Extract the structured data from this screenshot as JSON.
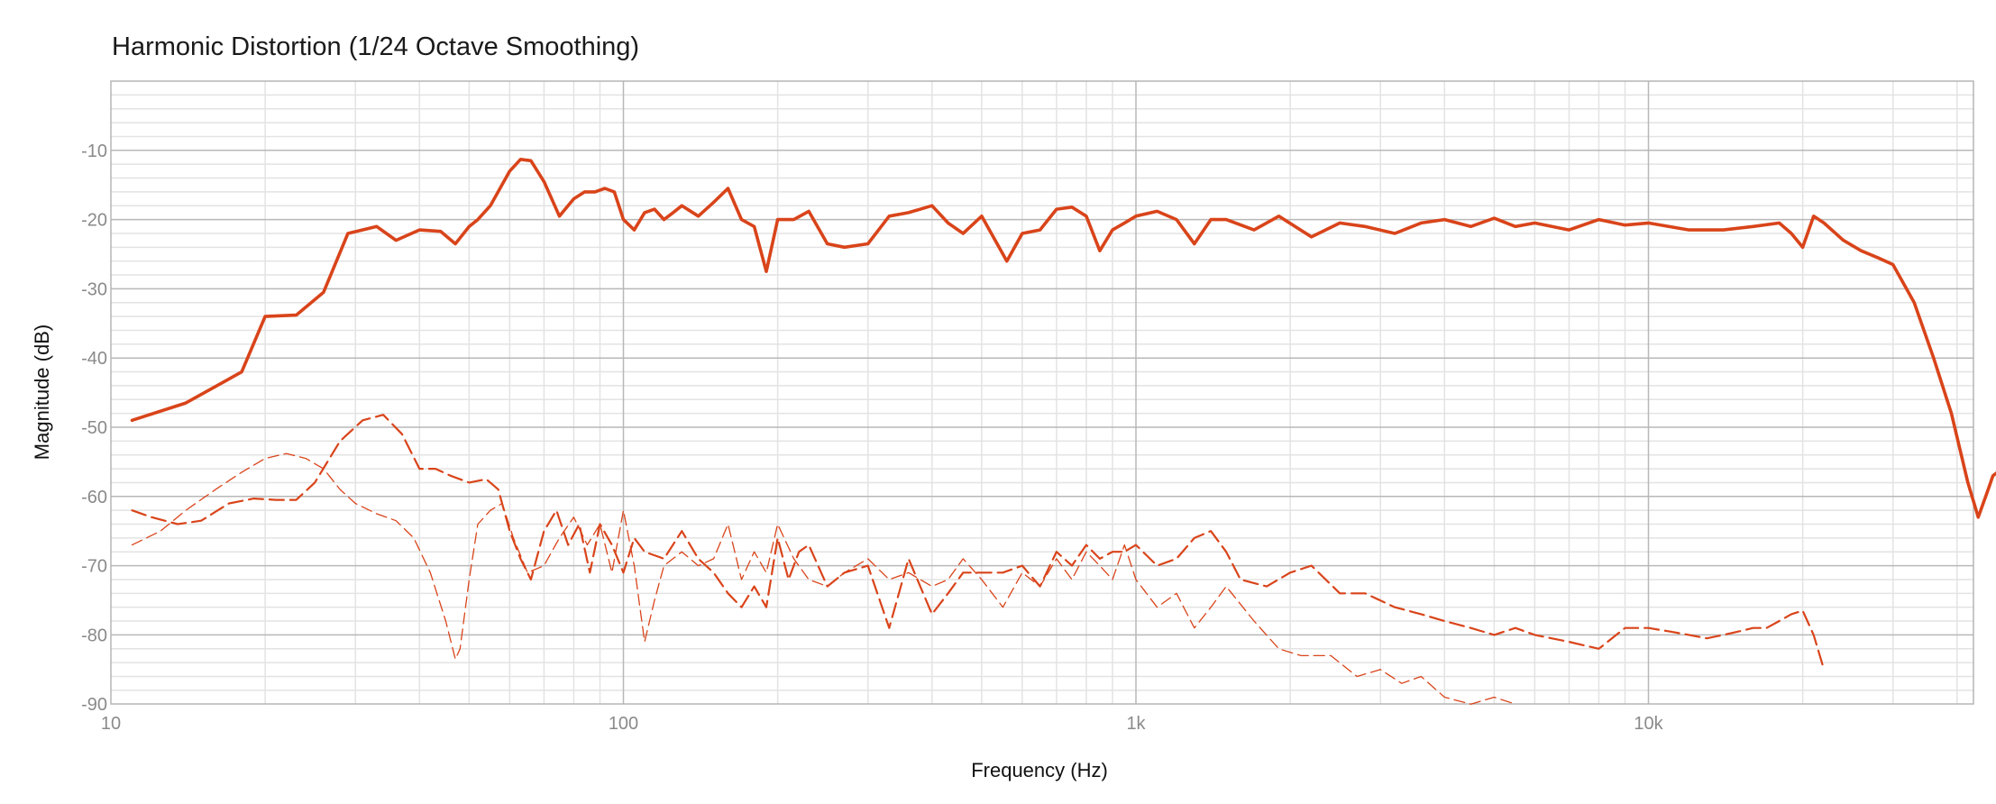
{
  "chart_data": {
    "type": "line",
    "title": "Harmonic Distortion",
    "subtitle": "(1/24 Octave Smoothing)",
    "xlabel": "Frequency (Hz)",
    "ylabel": "Magnitude (dB)",
    "x_scale": "log",
    "xlim": [
      10,
      50000
    ],
    "ylim": [
      -90,
      0
    ],
    "x_ticks": [
      10,
      100,
      1000,
      10000
    ],
    "x_tick_labels": [
      "10",
      "100",
      "1k",
      "10k"
    ],
    "y_ticks": [
      -10,
      -20,
      -30,
      -40,
      -50,
      -60,
      -70,
      -80,
      -90
    ],
    "y_tick_labels": [
      "-10",
      "-20",
      "-30",
      "-40",
      "-50",
      "-60",
      "-70",
      "-80",
      "-90"
    ],
    "grid": true,
    "colors": {
      "accent": "#d9441a",
      "grid_major": "#b8b8b8",
      "grid_minor": "#e3e3e3"
    },
    "series": [
      {
        "style": "solid",
        "x": [
          11,
          14,
          18,
          20,
          23,
          26,
          29,
          33,
          36,
          40,
          44,
          47,
          50,
          52,
          55,
          60,
          63,
          66,
          70,
          75,
          80,
          84,
          88,
          92,
          96,
          100,
          105,
          110,
          115,
          120,
          125,
          130,
          140,
          150,
          160,
          170,
          180,
          190,
          200,
          215,
          230,
          250,
          270,
          300,
          330,
          360,
          400,
          430,
          460,
          500,
          560,
          600,
          650,
          700,
          750,
          800,
          850,
          900,
          950,
          1000,
          1100,
          1200,
          1300,
          1400,
          1500,
          1700,
          1900,
          2200,
          2500,
          2800,
          3200,
          3600,
          4000,
          4500,
          5000,
          5500,
          6000,
          7000,
          8000,
          9000,
          10000,
          12000,
          14000,
          16000,
          18000,
          19000,
          20000,
          21000,
          22000,
          24000,
          26000,
          28000,
          30000,
          33000,
          36000,
          39000,
          42000,
          44000,
          46000,
          47000,
          48000,
          49000,
          50000
        ],
        "values": [
          -49,
          -46.5,
          -42,
          -34,
          -33.8,
          -30.5,
          -22,
          -21,
          -23,
          -21.5,
          -21.7,
          -23.5,
          -21,
          -20,
          -18,
          -13,
          -11.3,
          -11.5,
          -14.5,
          -19.5,
          -17,
          -16,
          -16,
          -15.5,
          -16,
          -20,
          -21.5,
          -19,
          -18.5,
          -20,
          -19,
          -18,
          -19.5,
          -17.5,
          -15.5,
          -20,
          -21,
          -27.5,
          -20,
          -20,
          -18.8,
          -23.5,
          -24,
          -23.5,
          -19.5,
          -19,
          -18,
          -20.5,
          -22,
          -19.5,
          -26,
          -22,
          -21.5,
          -18.5,
          -18.2,
          -19.5,
          -24.5,
          -21.5,
          -20.5,
          -19.5,
          -18.8,
          -20,
          -23.5,
          -20,
          -20,
          -21.5,
          -19.5,
          -22.5,
          -20.5,
          -21,
          -22,
          -20.5,
          -20,
          -21,
          -19.8,
          -21,
          -20.5,
          -21.5,
          -20,
          -20.8,
          -20.5,
          -21.5,
          -21.5,
          -21,
          -20.5,
          -22,
          -24,
          -19.5,
          -20.5,
          -23,
          -24.5,
          -25.5,
          -26.5,
          -32,
          -40,
          -48,
          -58,
          -63,
          -59,
          -57,
          -56.5,
          -58,
          -59.5
        ]
      },
      {
        "style": "dashed",
        "x": [
          11,
          12,
          13.5,
          15,
          17,
          19,
          21,
          23,
          25,
          28,
          31,
          34,
          37,
          40,
          43,
          46,
          50,
          54,
          57,
          60,
          63,
          66,
          70,
          74,
          78,
          82,
          86,
          90,
          95,
          100,
          105,
          110,
          120,
          130,
          140,
          150,
          160,
          170,
          180,
          190,
          200,
          210,
          220,
          230,
          250,
          270,
          300,
          330,
          360,
          400,
          430,
          460,
          500,
          550,
          600,
          650,
          700,
          750,
          800,
          850,
          900,
          950,
          1000,
          1100,
          1200,
          1300,
          1400,
          1500,
          1600,
          1800,
          2000,
          2200,
          2500,
          2800,
          3200,
          3600,
          4000,
          4500,
          5000,
          5500,
          6000,
          7000,
          8000,
          9000,
          10000,
          11000,
          12000,
          13000,
          14000,
          15000,
          16000,
          17000,
          18000,
          19000,
          20000,
          21000,
          22000
        ],
        "values": [
          -62,
          -63,
          -64,
          -63.5,
          -61,
          -60.3,
          -60.5,
          -60.5,
          -58,
          -52,
          -49,
          -48.2,
          -51,
          -56,
          -56,
          -57,
          -58,
          -57.5,
          -59,
          -65,
          -69,
          -72,
          -65,
          -62,
          -67,
          -64,
          -71,
          -64,
          -67,
          -71,
          -66,
          -68,
          -69,
          -65,
          -69,
          -71,
          -74,
          -76,
          -73,
          -76,
          -66,
          -72,
          -68,
          -67,
          -73,
          -71,
          -70,
          -79,
          -69,
          -77,
          -74,
          -71,
          -71,
          -71,
          -70,
          -73,
          -68,
          -70,
          -67,
          -69,
          -68,
          -68,
          -67,
          -70,
          -69,
          -66,
          -65,
          -68,
          -72,
          -73,
          -71,
          -70,
          -74,
          -74,
          -76,
          -77,
          -78,
          -79,
          -80,
          -79,
          -80,
          -81,
          -82,
          -79,
          -79,
          -79.5,
          -80,
          -80.5,
          -80,
          -79.5,
          -79,
          -79,
          -78,
          -77,
          -76.5,
          -80,
          -85
        ]
      },
      {
        "style": "dashed-thin",
        "x": [
          11,
          12.5,
          14,
          16,
          18,
          20,
          22,
          24,
          26,
          28,
          30,
          33,
          36,
          39,
          42,
          45,
          47,
          48,
          50,
          52,
          55,
          58,
          61,
          65,
          70,
          75,
          80,
          85,
          90,
          95,
          100,
          105,
          110,
          115,
          120,
          130,
          140,
          150,
          160,
          170,
          180,
          190,
          200,
          215,
          230,
          250,
          270,
          300,
          330,
          360,
          400,
          430,
          460,
          500,
          550,
          600,
          650,
          700,
          750,
          800,
          850,
          900,
          950,
          1000,
          1100,
          1200,
          1300,
          1400,
          1500,
          1700,
          1900,
          2100,
          2400,
          2700,
          3000,
          3300,
          3600,
          4000,
          4500,
          5000,
          5500
        ],
        "values": [
          -67,
          -65,
          -62,
          -59,
          -56.5,
          -54.5,
          -53.8,
          -54.5,
          -56,
          -59,
          -61,
          -62.5,
          -63.5,
          -66,
          -71,
          -78,
          -83.5,
          -82,
          -72,
          -64,
          -62,
          -61,
          -66,
          -71,
          -70,
          -66,
          -63,
          -67,
          -64,
          -71,
          -62,
          -70,
          -81,
          -75,
          -70,
          -68,
          -70,
          -69,
          -64,
          -72,
          -68,
          -71,
          -64,
          -69,
          -72,
          -73,
          -71,
          -69,
          -72,
          -71,
          -73,
          -72,
          -69,
          -72,
          -76,
          -71,
          -73,
          -69,
          -72,
          -68,
          -70,
          -72,
          -67,
          -72,
          -76,
          -74,
          -79,
          -76,
          -73,
          -78,
          -82,
          -83,
          -83,
          -86,
          -85,
          -87,
          -86,
          -89,
          -90,
          -89,
          -90
        ]
      }
    ]
  }
}
